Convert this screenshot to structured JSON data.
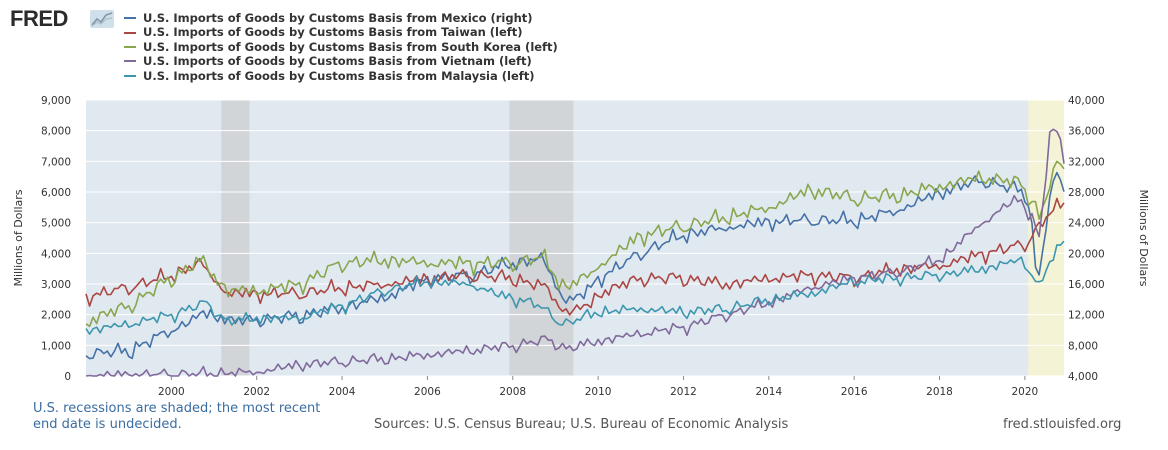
{
  "header": {
    "logo_text": "FRED",
    "logo_badge_icon": "line-chart-icon"
  },
  "footer": {
    "recession_note": "U.S. recessions are shaded; the most recent end date is undecided.",
    "sources": "Sources: U.S. Census Bureau; U.S. Bureau of Economic Analysis",
    "site": "fred.stlouisfed.org"
  },
  "chart_data": {
    "type": "line",
    "x_start": 1998.0,
    "x_end": 2020.917,
    "x_ticks": [
      "2000",
      "2002",
      "2004",
      "2006",
      "2008",
      "2010",
      "2012",
      "2014",
      "2016",
      "2018",
      "2020"
    ],
    "left_axis": {
      "label": "Millions of Dollars",
      "ylim": [
        0,
        9000
      ],
      "ticks": [
        "0",
        "1,000",
        "2,000",
        "3,000",
        "4,000",
        "5,000",
        "6,000",
        "7,000",
        "8,000",
        "9,000"
      ]
    },
    "right_axis": {
      "label": "Millions of Dollars",
      "ylim": [
        4000,
        40000
      ],
      "ticks": [
        "4,000",
        "8,000",
        "12,000",
        "16,000",
        "20,000",
        "24,000",
        "28,000",
        "32,000",
        "36,000",
        "40,000"
      ]
    },
    "recessions": [
      {
        "start": 2001.17,
        "end": 2001.83,
        "style": "recession"
      },
      {
        "start": 2007.92,
        "end": 2009.42,
        "style": "recession"
      },
      {
        "start": 2020.08,
        "end": 2020.917,
        "style": "undecided"
      }
    ],
    "series": [
      {
        "name": "U.S. Imports of Goods by Customs Basis from Mexico (right)",
        "color": "#4572a7",
        "axis": "right",
        "knots": [
          [
            1998.0,
            7000
          ],
          [
            1999.0,
            7300
          ],
          [
            2000.0,
            10000
          ],
          [
            2000.8,
            12300
          ],
          [
            2001.5,
            11200
          ],
          [
            2002.0,
            11400
          ],
          [
            2003.0,
            11900
          ],
          [
            2004.0,
            13000
          ],
          [
            2005.0,
            14300
          ],
          [
            2006.0,
            16700
          ],
          [
            2007.0,
            17200
          ],
          [
            2008.0,
            18800
          ],
          [
            2008.7,
            19400
          ],
          [
            2009.2,
            14000
          ],
          [
            2009.6,
            14400
          ],
          [
            2010.0,
            16700
          ],
          [
            2011.0,
            20100
          ],
          [
            2012.0,
            22500
          ],
          [
            2013.0,
            23400
          ],
          [
            2014.0,
            24200
          ],
          [
            2015.0,
            24400
          ],
          [
            2016.0,
            24300
          ],
          [
            2017.0,
            25600
          ],
          [
            2018.0,
            28000
          ],
          [
            2019.0,
            29600
          ],
          [
            2019.9,
            28200
          ],
          [
            2020.1,
            27000
          ],
          [
            2020.3,
            15600
          ],
          [
            2020.5,
            24000
          ],
          [
            2020.7,
            30500
          ],
          [
            2020.917,
            28800
          ]
        ],
        "noise": 900
      },
      {
        "name": "U.S. Imports of Goods by Customs Basis from Taiwan (left)",
        "color": "#aa4643",
        "axis": "left",
        "knots": [
          [
            1998.0,
            2600
          ],
          [
            1999.0,
            2900
          ],
          [
            2000.0,
            3300
          ],
          [
            2000.7,
            3700
          ],
          [
            2001.3,
            2700
          ],
          [
            2002.0,
            2700
          ],
          [
            2003.0,
            2700
          ],
          [
            2004.0,
            2900
          ],
          [
            2005.0,
            3000
          ],
          [
            2006.0,
            3200
          ],
          [
            2007.0,
            3300
          ],
          [
            2008.0,
            3200
          ],
          [
            2008.8,
            2900
          ],
          [
            2009.2,
            2100
          ],
          [
            2009.8,
            2300
          ],
          [
            2010.0,
            2700
          ],
          [
            2011.0,
            3200
          ],
          [
            2012.0,
            3200
          ],
          [
            2013.0,
            3000
          ],
          [
            2014.0,
            3200
          ],
          [
            2015.0,
            3300
          ],
          [
            2016.0,
            3200
          ],
          [
            2017.0,
            3500
          ],
          [
            2018.0,
            3600
          ],
          [
            2019.0,
            4000
          ],
          [
            2020.0,
            4300
          ],
          [
            2020.5,
            5200
          ],
          [
            2020.917,
            5700
          ]
        ],
        "noise": 220
      },
      {
        "name": "U.S. Imports of Goods by Customs Basis from South Korea (left)",
        "color": "#89a54e",
        "axis": "left",
        "knots": [
          [
            1998.0,
            1800
          ],
          [
            1999.0,
            2300
          ],
          [
            2000.0,
            3200
          ],
          [
            2000.7,
            3800
          ],
          [
            2001.3,
            2800
          ],
          [
            2002.0,
            2800
          ],
          [
            2003.0,
            3000
          ],
          [
            2004.0,
            3700
          ],
          [
            2005.0,
            3800
          ],
          [
            2006.0,
            3700
          ],
          [
            2007.0,
            3700
          ],
          [
            2008.0,
            3700
          ],
          [
            2008.7,
            3900
          ],
          [
            2009.2,
            2900
          ],
          [
            2009.8,
            3300
          ],
          [
            2010.0,
            3600
          ],
          [
            2011.0,
            4600
          ],
          [
            2012.0,
            4900
          ],
          [
            2013.0,
            5200
          ],
          [
            2014.0,
            5500
          ],
          [
            2015.0,
            6100
          ],
          [
            2016.0,
            5800
          ],
          [
            2017.0,
            5900
          ],
          [
            2018.0,
            6200
          ],
          [
            2019.0,
            6500
          ],
          [
            2019.9,
            6300
          ],
          [
            2020.2,
            5700
          ],
          [
            2020.35,
            5100
          ],
          [
            2020.6,
            6400
          ],
          [
            2020.8,
            7000
          ],
          [
            2020.917,
            6700
          ]
        ],
        "noise": 250
      },
      {
        "name": "U.S. Imports of Goods by Customs Basis from Vietnam (left)",
        "color": "#80699b",
        "axis": "left",
        "knots": [
          [
            1998.0,
            30
          ],
          [
            1999.0,
            40
          ],
          [
            2000.0,
            70
          ],
          [
            2001.0,
            90
          ],
          [
            2002.0,
            140
          ],
          [
            2003.0,
            380
          ],
          [
            2004.0,
            480
          ],
          [
            2005.0,
            570
          ],
          [
            2006.0,
            700
          ],
          [
            2007.0,
            850
          ],
          [
            2008.0,
            1000
          ],
          [
            2008.8,
            1200
          ],
          [
            2009.3,
            900
          ],
          [
            2010.0,
            1150
          ],
          [
            2011.0,
            1400
          ],
          [
            2012.0,
            1600
          ],
          [
            2013.0,
            2000
          ],
          [
            2014.0,
            2400
          ],
          [
            2015.0,
            2900
          ],
          [
            2016.0,
            3200
          ],
          [
            2017.0,
            3400
          ],
          [
            2018.0,
            3800
          ],
          [
            2019.0,
            5000
          ],
          [
            2019.8,
            5800
          ],
          [
            2020.2,
            5200
          ],
          [
            2020.35,
            4400
          ],
          [
            2020.6,
            8200
          ],
          [
            2020.8,
            7800
          ],
          [
            2020.917,
            7000
          ]
        ],
        "noise": 180
      },
      {
        "name": "U.S. Imports of Goods by Customs Basis from Malaysia (left)",
        "color": "#3d96ae",
        "axis": "left",
        "knots": [
          [
            1998.0,
            1500
          ],
          [
            1999.0,
            1700
          ],
          [
            2000.0,
            2000
          ],
          [
            2000.8,
            2400
          ],
          [
            2001.3,
            1800
          ],
          [
            2002.0,
            1900
          ],
          [
            2003.0,
            1900
          ],
          [
            2004.0,
            2300
          ],
          [
            2005.0,
            2800
          ],
          [
            2006.0,
            3100
          ],
          [
            2007.0,
            3000
          ],
          [
            2007.8,
            2600
          ],
          [
            2008.5,
            2400
          ],
          [
            2009.2,
            1700
          ],
          [
            2009.8,
            2000
          ],
          [
            2010.0,
            2100
          ],
          [
            2011.0,
            2200
          ],
          [
            2012.0,
            2100
          ],
          [
            2013.0,
            2200
          ],
          [
            2014.0,
            2500
          ],
          [
            2015.0,
            2700
          ],
          [
            2016.0,
            3100
          ],
          [
            2017.0,
            3200
          ],
          [
            2018.0,
            3300
          ],
          [
            2019.0,
            3500
          ],
          [
            2019.9,
            3800
          ],
          [
            2020.2,
            3300
          ],
          [
            2020.35,
            2900
          ],
          [
            2020.6,
            3800
          ],
          [
            2020.917,
            4400
          ]
        ],
        "noise": 180
      }
    ]
  }
}
